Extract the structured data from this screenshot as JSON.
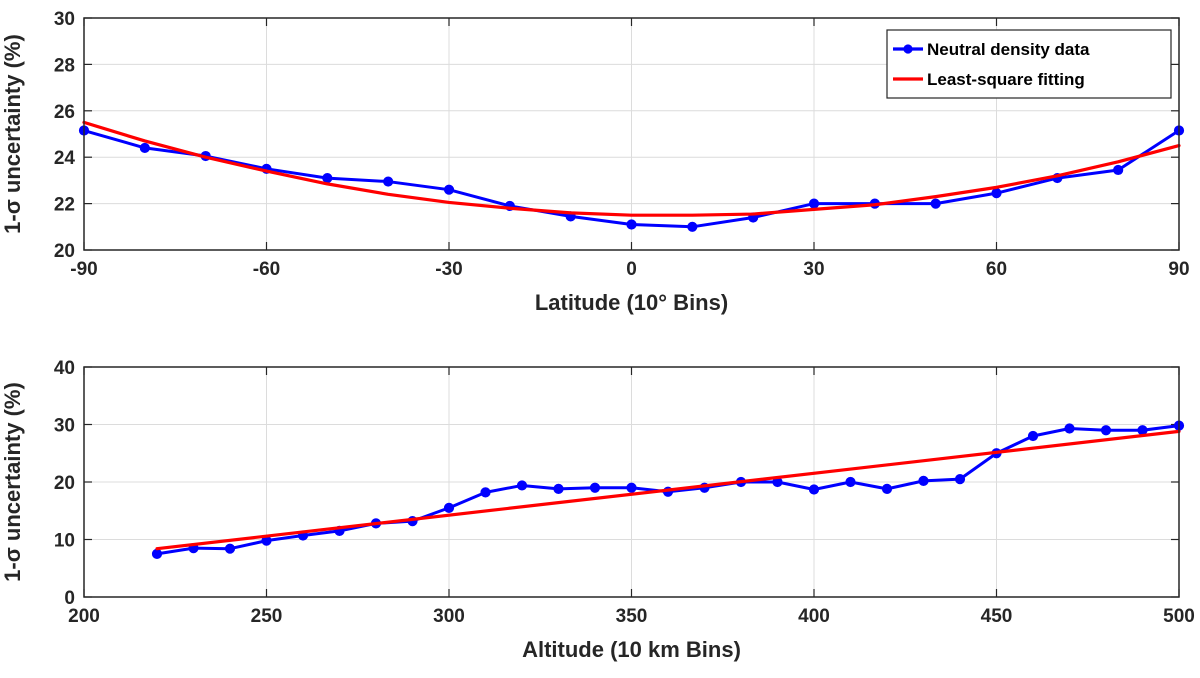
{
  "colors": {
    "data": "#0000ff",
    "fit": "#ff0000"
  },
  "chart_data": [
    {
      "type": "line",
      "xlabel": "Latitude (10° Bins)",
      "ylabel": "1-σ uncertainty (%)",
      "xlim": [
        -90,
        90
      ],
      "ylim": [
        20,
        30
      ],
      "xticks": [
        -90,
        -60,
        -30,
        0,
        30,
        60,
        90
      ],
      "yticks": [
        20,
        22,
        24,
        26,
        28,
        30
      ],
      "grid": true,
      "legend_position": "top-right",
      "series": [
        {
          "name": "Neutral density data",
          "style": "line-markers",
          "x": [
            -90,
            -80,
            -70,
            -60,
            -50,
            -40,
            -30,
            -20,
            -10,
            0,
            10,
            20,
            30,
            40,
            50,
            60,
            70,
            80,
            90
          ],
          "y": [
            25.15,
            24.4,
            24.05,
            23.5,
            23.1,
            22.95,
            22.6,
            21.9,
            21.45,
            21.1,
            21.0,
            21.4,
            22.0,
            22.0,
            22.0,
            22.45,
            23.1,
            23.45,
            25.15
          ]
        },
        {
          "name": "Least-square fitting",
          "style": "line",
          "x": [
            -90,
            -80,
            -70,
            -60,
            -50,
            -40,
            -30,
            -20,
            -10,
            0,
            10,
            20,
            30,
            40,
            50,
            60,
            70,
            80,
            90
          ],
          "y": [
            25.5,
            24.7,
            24.0,
            23.4,
            22.85,
            22.4,
            22.05,
            21.8,
            21.6,
            21.5,
            21.5,
            21.55,
            21.75,
            21.95,
            22.3,
            22.7,
            23.2,
            23.8,
            24.5
          ]
        }
      ]
    },
    {
      "type": "line",
      "xlabel": "Altitude (10 km Bins)",
      "ylabel": "1-σ uncertainty (%)",
      "xlim": [
        200,
        500
      ],
      "ylim": [
        0,
        40
      ],
      "xticks": [
        200,
        250,
        300,
        350,
        400,
        450,
        500
      ],
      "yticks": [
        0,
        10,
        20,
        30,
        40
      ],
      "grid": true,
      "series": [
        {
          "name": "Neutral density data",
          "style": "line-markers",
          "x": [
            220,
            230,
            240,
            250,
            260,
            270,
            280,
            290,
            300,
            310,
            320,
            330,
            340,
            350,
            360,
            370,
            380,
            390,
            400,
            410,
            420,
            430,
            440,
            450,
            460,
            470,
            480,
            490,
            500
          ],
          "y": [
            7.5,
            8.5,
            8.4,
            9.8,
            10.7,
            11.5,
            12.8,
            13.2,
            15.5,
            18.2,
            19.4,
            18.8,
            19.0,
            19.0,
            18.3,
            19.0,
            20.0,
            20.0,
            18.7,
            20.0,
            18.8,
            20.2,
            20.5,
            25.0,
            28.0,
            29.3,
            29.0,
            29.0,
            29.8
          ]
        },
        {
          "name": "Least-square fitting",
          "style": "line",
          "x": [
            220,
            500
          ],
          "y": [
            8.4,
            28.8
          ]
        }
      ]
    }
  ]
}
